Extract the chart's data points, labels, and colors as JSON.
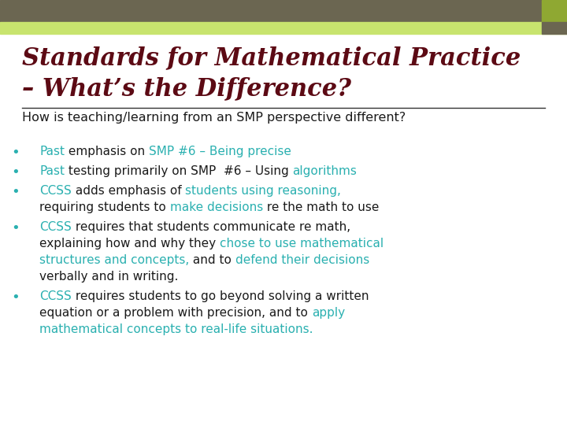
{
  "background_color": "#ffffff",
  "header_bar1_color": "#6b6651",
  "header_bar2_color": "#c8e46e",
  "accent_box_color": "#8fa832",
  "accent_box2_color": "#6b6651",
  "title_line1": "Standards for Mathematical Practice",
  "title_line2": "– What’s the Difference?",
  "title_color": "#5c0a14",
  "title_fontsize": 22,
  "subtitle_text": "How is teaching/learning from an SMP perspective different?",
  "subtitle_color": "#1a1a1a",
  "subtitle_fontsize": 11.5,
  "teal_color": "#2ab0b0",
  "black_color": "#1a1a1a",
  "bullet_color": "#2ab0b0",
  "bullet_fontsize": 11,
  "bullets": [
    {
      "lines": [
        [
          {
            "text": "Past",
            "color": "#2ab0b0"
          },
          {
            "text": " emphasis on ",
            "color": "#1a1a1a"
          },
          {
            "text": "SMP #6 – Being precise",
            "color": "#2ab0b0"
          }
        ]
      ]
    },
    {
      "lines": [
        [
          {
            "text": "Past",
            "color": "#2ab0b0"
          },
          {
            "text": " testing primarily on SMP  #6 – Using ",
            "color": "#1a1a1a"
          },
          {
            "text": "algorithms",
            "color": "#2ab0b0"
          }
        ]
      ]
    },
    {
      "lines": [
        [
          {
            "text": "CCSS",
            "color": "#2ab0b0"
          },
          {
            "text": " adds emphasis of ",
            "color": "#1a1a1a"
          },
          {
            "text": "students using reasoning,",
            "color": "#2ab0b0"
          }
        ],
        [
          {
            "text": "requiring students to ",
            "color": "#1a1a1a"
          },
          {
            "text": "make decisions",
            "color": "#2ab0b0"
          },
          {
            "text": " re the math to use",
            "color": "#1a1a1a"
          }
        ]
      ]
    },
    {
      "lines": [
        [
          {
            "text": "CCSS",
            "color": "#2ab0b0"
          },
          {
            "text": " requires that students communicate re math,",
            "color": "#1a1a1a"
          }
        ],
        [
          {
            "text": "explaining how and why they ",
            "color": "#1a1a1a"
          },
          {
            "text": "chose to use mathematical",
            "color": "#2ab0b0"
          }
        ],
        [
          {
            "text": "structures and concepts,",
            "color": "#2ab0b0"
          },
          {
            "text": " and to ",
            "color": "#1a1a1a"
          },
          {
            "text": "defend their decisions",
            "color": "#2ab0b0"
          }
        ],
        [
          {
            "text": "verbally and in writing.",
            "color": "#1a1a1a"
          }
        ]
      ]
    },
    {
      "lines": [
        [
          {
            "text": "CCSS",
            "color": "#2ab0b0"
          },
          {
            "text": " requires students to go beyond solving a written",
            "color": "#1a1a1a"
          }
        ],
        [
          {
            "text": "equation or a problem with precision, and to ",
            "color": "#1a1a1a"
          },
          {
            "text": "apply",
            "color": "#2ab0b0"
          }
        ],
        [
          {
            "text": "mathematical concepts to real-life situations.",
            "color": "#2ab0b0"
          }
        ]
      ]
    }
  ]
}
